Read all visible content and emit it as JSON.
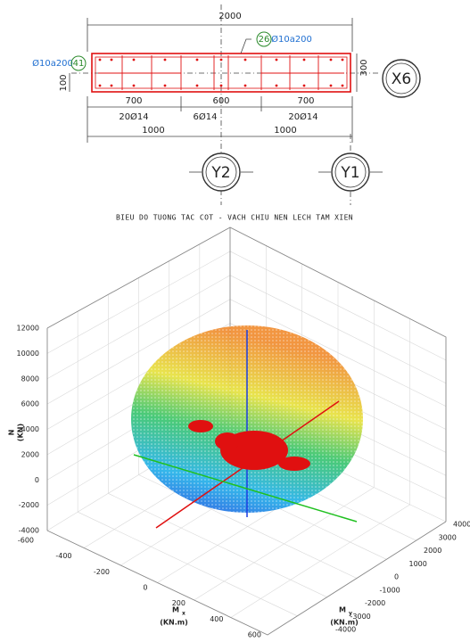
{
  "drawing": {
    "total_dimension": "2000",
    "left_stirrup": {
      "marker": "41",
      "label": "Ø10a200"
    },
    "top_stirrup": {
      "marker": "26",
      "label": "Ø10a200"
    },
    "wall_thickness": "300",
    "cover": "100",
    "segments": [
      "700",
      "600",
      "700"
    ],
    "rebars": [
      "20Ø14",
      "6Ø14",
      "20Ø14"
    ],
    "halves": [
      "1000",
      "1000"
    ],
    "grid_labels": {
      "row": "X6",
      "columns": [
        "Y2",
        "Y1"
      ]
    }
  },
  "chart": {
    "title": "BIEU DO TUONG TAC COT - VACH CHIU NEN LECH TAM XIEN",
    "n_axis": {
      "symbol": "N",
      "unit": "(KN)",
      "ticks": [
        "12000",
        "10000",
        "8000",
        "6000",
        "4000",
        "2000",
        "0",
        "-2000",
        "-4000"
      ]
    },
    "mx_axis": {
      "symbol": "M",
      "subscript": "x",
      "unit": "(KN.m)",
      "ticks": [
        "-600",
        "-400",
        "-200",
        "0",
        "200",
        "400",
        "600"
      ]
    },
    "my_axis": {
      "symbol": "M",
      "subscript": "y",
      "unit": "(KN.m)",
      "ticks": [
        "4000",
        "3000",
        "2000",
        "1000",
        "0",
        "-1000",
        "-2000",
        "-3000",
        "-4000"
      ]
    }
  }
}
